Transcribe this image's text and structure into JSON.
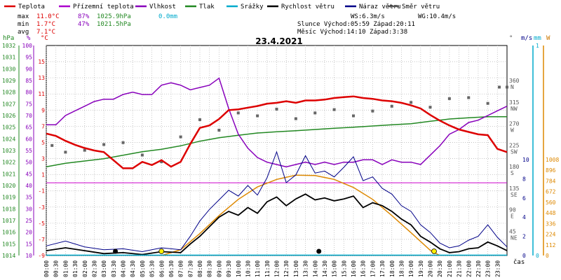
{
  "chart_data": {
    "type": "line",
    "title": "23.4.2021",
    "legend": [
      {
        "label": "Teplota",
        "color": "#dd0000"
      },
      {
        "label": "Přízemní teplota",
        "color": "#aa00cc"
      },
      {
        "label": "Vlhkost",
        "color": "#8800bb"
      },
      {
        "label": "Tlak",
        "color": "#228822"
      },
      {
        "label": "Srážky",
        "color": "#00aacc"
      },
      {
        "label": "Rychlost větru",
        "color": "#000000"
      },
      {
        "label": "Náraz větru",
        "color": "#000088"
      },
      {
        "label": "Směr větru",
        "color": "#555555"
      }
    ],
    "stats": {
      "max_label": "max",
      "max_temp": "11.0°C",
      "max_hum": "87%",
      "max_press": "1025.9hPa",
      "max_rain": "0.0mm",
      "min_label": "min",
      "min_temp": "1.7°C",
      "min_hum": "47%",
      "min_press": "1021.5hPa",
      "avg_label": "avg",
      "avg_temp": "7.1°C"
    },
    "info": {
      "ws": "WS:6.3m/s",
      "wg": "WG:10.4m/s",
      "sun": "Slunce Východ:05:59  Západ:20:11",
      "moon": "Měsíc  Východ:14:10  Západ:3:38"
    },
    "axes": {
      "hpa_label": "hPa",
      "pct_label": "%",
      "c_label": "°C",
      "dir_label": "°",
      "mm_label": "mm",
      "w_label": "W",
      "ms_label": "m/s",
      "time_label": "čas",
      "hpa_ticks": [
        1032,
        1031,
        1030,
        1029,
        1028,
        1027,
        1026,
        1025,
        1024,
        1023,
        1022,
        1021,
        1020,
        1019,
        1018,
        1017,
        1016,
        1015,
        1014
      ],
      "pct_ticks": [
        100,
        95,
        90,
        85,
        80,
        75,
        70,
        65,
        60,
        55,
        50,
        45,
        40,
        35,
        30,
        25,
        20,
        15,
        10
      ],
      "c_ticks": [
        15,
        13,
        11,
        9,
        7,
        5,
        3,
        1,
        -1,
        -3,
        -5,
        -7,
        -9
      ],
      "dir_ticks": [
        {
          "v": "360",
          "d": "N"
        },
        {
          "v": "315",
          "d": "NW"
        },
        {
          "v": "270",
          "d": "W"
        },
        {
          "v": "225",
          "d": "SW"
        },
        {
          "v": "180",
          "d": "S"
        },
        {
          "v": "135",
          "d": "SE"
        },
        {
          "v": "90",
          "d": "E"
        },
        {
          "v": "45",
          "d": "NE"
        }
      ],
      "mm_ticks": [
        "1",
        "0"
      ],
      "ms_ticks": [
        "10",
        "8",
        "6",
        "4",
        "2",
        "0"
      ],
      "w_ticks": [
        "1008",
        "896",
        "784",
        "672",
        "560",
        "448",
        "336",
        "224",
        "112",
        "0"
      ],
      "time_ticks": [
        "00:00",
        "00:30",
        "01:00",
        "01:30",
        "02:00",
        "02:30",
        "03:00",
        "03:30",
        "04:00",
        "04:30",
        "05:00",
        "05:30",
        "06:00",
        "06:30",
        "07:00",
        "07:30",
        "08:00",
        "08:30",
        "09:00",
        "09:30",
        "10:00",
        "10:30",
        "11:00",
        "11:30",
        "12:00",
        "12:30",
        "13:00",
        "13:30",
        "14:00",
        "14:30",
        "15:00",
        "15:30",
        "16:00",
        "16:30",
        "17:00",
        "17:30",
        "18:00",
        "18:30",
        "19:00",
        "19:30",
        "20:00",
        "20:30",
        "21:00",
        "21:30",
        "22:00",
        "22:30",
        "23:00",
        "23:30"
      ]
    },
    "series": {
      "temperature": [
        [
          0,
          6.1
        ],
        [
          0.5,
          5.8
        ],
        [
          1,
          5.2
        ],
        [
          1.5,
          4.7
        ],
        [
          2,
          4.3
        ],
        [
          2.5,
          4.0
        ],
        [
          3,
          3.8
        ],
        [
          3.5,
          2.8
        ],
        [
          4,
          1.8
        ],
        [
          4.5,
          1.8
        ],
        [
          5,
          2.6
        ],
        [
          5.5,
          2.2
        ],
        [
          6,
          2.8
        ],
        [
          6.5,
          2.0
        ],
        [
          7,
          2.6
        ],
        [
          7.5,
          4.8
        ],
        [
          8,
          6.8
        ],
        [
          8.5,
          7.1
        ],
        [
          9,
          7.9
        ],
        [
          9.5,
          9.0
        ],
        [
          10,
          9.1
        ],
        [
          10.5,
          9.3
        ],
        [
          11,
          9.5
        ],
        [
          11.5,
          9.8
        ],
        [
          12,
          9.9
        ],
        [
          12.5,
          10.1
        ],
        [
          13,
          9.9
        ],
        [
          13.5,
          10.2
        ],
        [
          14,
          10.2
        ],
        [
          14.5,
          10.3
        ],
        [
          15,
          10.5
        ],
        [
          15.5,
          10.6
        ],
        [
          16,
          10.7
        ],
        [
          16.5,
          10.5
        ],
        [
          17,
          10.4
        ],
        [
          17.5,
          10.2
        ],
        [
          18,
          10.1
        ],
        [
          18.5,
          9.9
        ],
        [
          19,
          9.6
        ],
        [
          19.5,
          9.2
        ],
        [
          20,
          8.4
        ],
        [
          20.5,
          7.7
        ],
        [
          21,
          7.1
        ],
        [
          21.5,
          6.6
        ],
        [
          22,
          6.3
        ],
        [
          22.5,
          6.0
        ],
        [
          23,
          5.9
        ],
        [
          23.5,
          4.2
        ],
        [
          24,
          3.8
        ]
      ],
      "humidity": [
        [
          0,
          66
        ],
        [
          0.5,
          66
        ],
        [
          1,
          70
        ],
        [
          1.5,
          72
        ],
        [
          2,
          74
        ],
        [
          2.5,
          76
        ],
        [
          3,
          77
        ],
        [
          3.5,
          77
        ],
        [
          4,
          79
        ],
        [
          4.5,
          80
        ],
        [
          5,
          79
        ],
        [
          5.5,
          79
        ],
        [
          6,
          83
        ],
        [
          6.5,
          84
        ],
        [
          7,
          83
        ],
        [
          7.5,
          81
        ],
        [
          8,
          82
        ],
        [
          8.5,
          83
        ],
        [
          9,
          86
        ],
        [
          9.5,
          73
        ],
        [
          10,
          62
        ],
        [
          10.5,
          56
        ],
        [
          11,
          52
        ],
        [
          11.5,
          50
        ],
        [
          12,
          49
        ],
        [
          12.5,
          48
        ],
        [
          13,
          49
        ],
        [
          13.5,
          50
        ],
        [
          14,
          49
        ],
        [
          14.5,
          50
        ],
        [
          15,
          49
        ],
        [
          15.5,
          50
        ],
        [
          16,
          50
        ],
        [
          16.5,
          51
        ],
        [
          17,
          51
        ],
        [
          17.5,
          49
        ],
        [
          18,
          51
        ],
        [
          18.5,
          50
        ],
        [
          19,
          50
        ],
        [
          19.5,
          49
        ],
        [
          20,
          53
        ],
        [
          20.5,
          57
        ],
        [
          21,
          62
        ],
        [
          21.5,
          64
        ],
        [
          22,
          67
        ],
        [
          22.5,
          68
        ],
        [
          23,
          70
        ],
        [
          23.5,
          72
        ],
        [
          24,
          74
        ]
      ],
      "pressure": [
        [
          0,
          1021.6
        ],
        [
          1,
          1021.9
        ],
        [
          2,
          1022.1
        ],
        [
          3,
          1022.3
        ],
        [
          4,
          1022.6
        ],
        [
          5,
          1022.9
        ],
        [
          6,
          1023.1
        ],
        [
          7,
          1023.4
        ],
        [
          8,
          1023.8
        ],
        [
          9,
          1024.1
        ],
        [
          10,
          1024.3
        ],
        [
          11,
          1024.5
        ],
        [
          12,
          1024.6
        ],
        [
          13,
          1024.7
        ],
        [
          14,
          1024.8
        ],
        [
          15,
          1024.9
        ],
        [
          16,
          1025.0
        ],
        [
          17,
          1025.1
        ],
        [
          18,
          1025.2
        ],
        [
          19,
          1025.3
        ],
        [
          20,
          1025.5
        ],
        [
          21,
          1025.7
        ],
        [
          22,
          1025.8
        ],
        [
          23,
          1025.9
        ],
        [
          24,
          1025.9
        ]
      ],
      "wind_speed": [
        [
          0,
          0.5
        ],
        [
          1,
          0.8
        ],
        [
          2,
          0.5
        ],
        [
          3,
          0.2
        ],
        [
          4,
          0.3
        ],
        [
          5,
          0.1
        ],
        [
          6,
          0.4
        ],
        [
          7,
          0.3
        ],
        [
          7.5,
          1.2
        ],
        [
          8,
          2.0
        ],
        [
          8.5,
          3.0
        ],
        [
          9,
          4.0
        ],
        [
          9.5,
          4.6
        ],
        [
          10,
          4.2
        ],
        [
          10.5,
          5.0
        ],
        [
          11,
          4.4
        ],
        [
          11.5,
          5.6
        ],
        [
          12,
          6.1
        ],
        [
          12.5,
          5.2
        ],
        [
          13,
          5.9
        ],
        [
          13.5,
          6.4
        ],
        [
          14,
          5.8
        ],
        [
          14.5,
          6.0
        ],
        [
          15,
          5.7
        ],
        [
          15.5,
          5.9
        ],
        [
          16,
          6.2
        ],
        [
          16.5,
          5.0
        ],
        [
          17,
          5.5
        ],
        [
          17.5,
          5.2
        ],
        [
          18,
          4.6
        ],
        [
          18.5,
          3.8
        ],
        [
          19,
          3.2
        ],
        [
          19.5,
          2.0
        ],
        [
          20,
          1.4
        ],
        [
          20.5,
          0.7
        ],
        [
          21,
          0.3
        ],
        [
          21.5,
          0.4
        ],
        [
          22,
          0.7
        ],
        [
          22.5,
          0.8
        ],
        [
          23,
          1.4
        ],
        [
          23.5,
          1.0
        ],
        [
          24,
          0.5
        ]
      ],
      "wind_gust": [
        [
          0,
          1.0
        ],
        [
          1,
          1.5
        ],
        [
          2,
          0.9
        ],
        [
          3,
          0.6
        ],
        [
          4,
          0.7
        ],
        [
          5,
          0.4
        ],
        [
          6,
          0.8
        ],
        [
          7,
          0.6
        ],
        [
          7.5,
          2.0
        ],
        [
          8,
          3.6
        ],
        [
          8.5,
          4.8
        ],
        [
          9,
          5.8
        ],
        [
          9.5,
          6.8
        ],
        [
          10,
          6.2
        ],
        [
          10.5,
          7.3
        ],
        [
          11,
          6.3
        ],
        [
          11.5,
          8.1
        ],
        [
          12,
          10.8
        ],
        [
          12.5,
          7.6
        ],
        [
          13,
          8.4
        ],
        [
          13.5,
          10.4
        ],
        [
          14,
          8.6
        ],
        [
          14.5,
          8.8
        ],
        [
          15,
          8.2
        ],
        [
          15.5,
          9.2
        ],
        [
          16,
          10.3
        ],
        [
          16.5,
          7.8
        ],
        [
          17,
          8.2
        ],
        [
          17.5,
          7.0
        ],
        [
          18,
          6.4
        ],
        [
          18.5,
          5.2
        ],
        [
          19,
          4.6
        ],
        [
          19.5,
          3.2
        ],
        [
          20,
          2.4
        ],
        [
          20.5,
          1.3
        ],
        [
          21,
          0.8
        ],
        [
          21.5,
          1.0
        ],
        [
          22,
          1.6
        ],
        [
          22.5,
          2.0
        ],
        [
          23,
          3.2
        ],
        [
          23.5,
          1.9
        ],
        [
          24,
          0.9
        ]
      ],
      "solar": [
        [
          6,
          0
        ],
        [
          7,
          60
        ],
        [
          8,
          230
        ],
        [
          9,
          420
        ],
        [
          10,
          590
        ],
        [
          11,
          720
        ],
        [
          12,
          800
        ],
        [
          13,
          845
        ],
        [
          14,
          840
        ],
        [
          15,
          800
        ],
        [
          16,
          715
        ],
        [
          17,
          590
        ],
        [
          18,
          420
        ],
        [
          19,
          240
        ],
        [
          20,
          55
        ],
        [
          20.5,
          0
        ]
      ],
      "wind_dir": [
        [
          0.3,
          230
        ],
        [
          1,
          216
        ],
        [
          2,
          220
        ],
        [
          3,
          232
        ],
        [
          4,
          236
        ],
        [
          5,
          210
        ],
        [
          6,
          196
        ],
        [
          7,
          248
        ],
        [
          8,
          284
        ],
        [
          9,
          262
        ],
        [
          10,
          298
        ],
        [
          11,
          292
        ],
        [
          12,
          306
        ],
        [
          13,
          286
        ],
        [
          14,
          298
        ],
        [
          15,
          305
        ],
        [
          16,
          292
        ],
        [
          17,
          302
        ],
        [
          18,
          312
        ],
        [
          19,
          320
        ],
        [
          20,
          310
        ],
        [
          21,
          328
        ],
        [
          22,
          330
        ],
        [
          23,
          318
        ],
        [
          23.6,
          352
        ],
        [
          24,
          352
        ]
      ]
    },
    "rain_total": "0.0mm"
  }
}
